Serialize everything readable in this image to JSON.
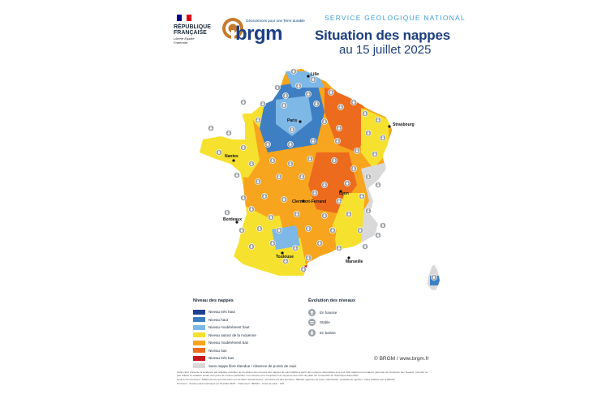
{
  "header": {
    "republique": "RÉPUBLIQUE FRANÇAISE",
    "motto": "Liberté Égalité Fraternité",
    "brgm_tagline": "Géosciences pour une Terre durable",
    "brgm_word": "brgm",
    "service": "SERVICE GÉOLOGIQUE NATIONAL",
    "title": "Situation des nappes",
    "subtitle": "au 15 juillet 2025",
    "flag_colors": [
      "#000091",
      "#ffffff",
      "#e1000f"
    ]
  },
  "map": {
    "cities": [
      {
        "name": "Lille"
      },
      {
        "name": "Paris"
      },
      {
        "name": "Strasbourg"
      },
      {
        "name": "Nantes"
      },
      {
        "name": "Clermont-Ferrand"
      },
      {
        "name": "Lyon"
      },
      {
        "name": "Bordeaux"
      },
      {
        "name": "Toulouse"
      },
      {
        "name": "Marseille"
      }
    ]
  },
  "legend": {
    "title": "Niveau des nappes",
    "items": [
      {
        "label": "Niveau très haut",
        "color": "#1f3f8f"
      },
      {
        "label": "Niveau haut",
        "color": "#3e7fc3"
      },
      {
        "label": "Niveau modérément haut",
        "color": "#7db8e6"
      },
      {
        "label": "Niveau autour de la moyenne",
        "color": "#f5e12e"
      },
      {
        "label": "Niveau modérément bas",
        "color": "#f7a51e"
      },
      {
        "label": "Niveau bas",
        "color": "#ec6b1c"
      },
      {
        "label": "Niveau très bas",
        "color": "#c4161c"
      },
      {
        "label": "Sans nappe libre étendue / Absence de points de suivi",
        "color": "#d9d9d9"
      }
    ]
  },
  "evolution": {
    "title": "Évolution des niveaux",
    "items": [
      {
        "label": "En hausse",
        "icon": "arrow-up-icon"
      },
      {
        "label": "Stable",
        "icon": "equals-icon"
      },
      {
        "label": "En baisse",
        "icon": "arrow-down-icon"
      }
    ]
  },
  "copyright": "© BRGM / www.brgm.fr",
  "disclaimer": [
    "Cette carte présente la tendance par aquifère résultant de l'évolution des niveaux des nappes de suivi établie à partir des mesures disponibles à ce jour. Elle traduit une tendance générale de l'évolution des niveaux, pouvant ne pas refléter la situation locale d'un point de mesure particulier. Les niveaux sont comparés à la moyenne des mois de juillet sur l'ensemble de l'historique disponible.",
    "Source des données : ADES (Accès aux Données sur les Eaux Souterraines) – Producteurs des données : BRGM, agences de l'eau, collectivités, syndicats de gestion. Carte réalisée par le BRGM.",
    "Données : niveaux piézométriques au 15 juillet 2025 – Traitement : BRGM – Fond de carte : IGN."
  ]
}
